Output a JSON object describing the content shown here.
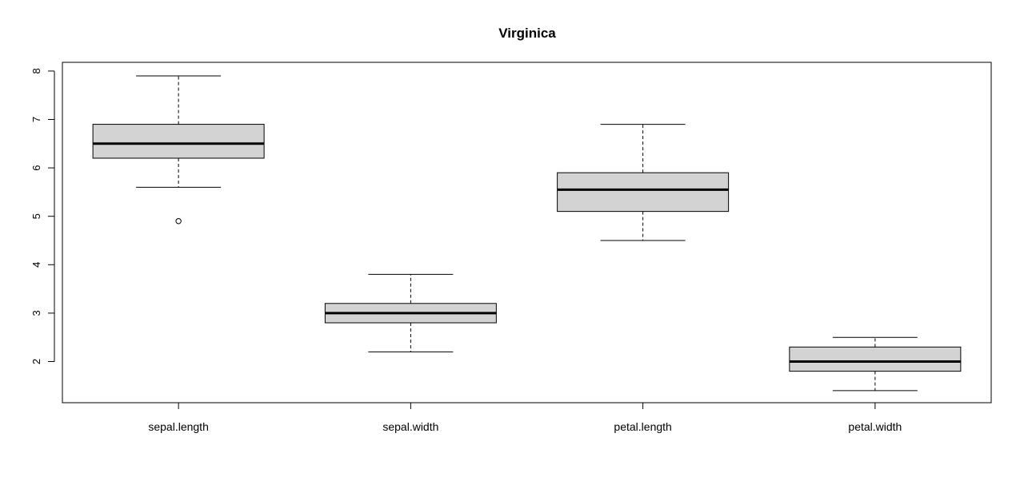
{
  "chart_data": {
    "type": "box",
    "title": "Virginica",
    "xlabel": "",
    "ylabel": "",
    "ylim": [
      1.15,
      8.18
    ],
    "y_ticks": [
      2,
      3,
      4,
      5,
      6,
      7,
      8
    ],
    "grid": false,
    "legend": "none",
    "box_fill": "#d3d3d3",
    "categories": [
      "sepal.length",
      "sepal.width",
      "petal.length",
      "petal.width"
    ],
    "series": [
      {
        "category": "sepal.length",
        "whisker_low": 5.6,
        "q1": 6.2,
        "median": 6.5,
        "q3": 6.9,
        "whisker_high": 7.9,
        "outliers": [
          4.9
        ]
      },
      {
        "category": "sepal.width",
        "whisker_low": 2.2,
        "q1": 2.8,
        "median": 3.0,
        "q3": 3.2,
        "whisker_high": 3.8,
        "outliers": []
      },
      {
        "category": "petal.length",
        "whisker_low": 4.5,
        "q1": 5.1,
        "median": 5.55,
        "q3": 5.9,
        "whisker_high": 6.9,
        "outliers": []
      },
      {
        "category": "petal.width",
        "whisker_low": 1.4,
        "q1": 1.8,
        "median": 2.0,
        "q3": 2.3,
        "whisker_high": 2.5,
        "outliers": []
      }
    ]
  }
}
